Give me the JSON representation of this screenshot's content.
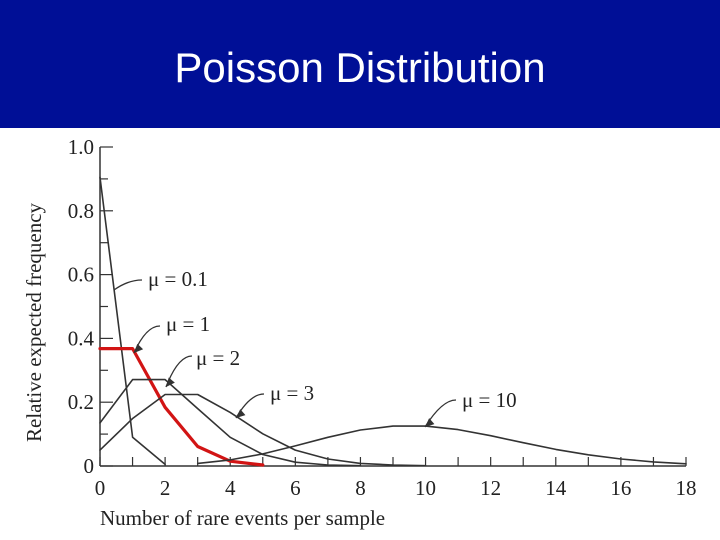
{
  "slide": {
    "title": "Poisson Distribution",
    "title_bar_color": "#000f96",
    "title_text_color": "#ffffff"
  },
  "chart_data": {
    "type": "line",
    "title": "",
    "xlabel": "Number of rare events per sample",
    "ylabel": "Relative expected frequency",
    "xlim": [
      0,
      18
    ],
    "ylim": [
      0,
      1.0
    ],
    "x_ticks": [
      0,
      2,
      4,
      6,
      8,
      10,
      12,
      14,
      16,
      18
    ],
    "y_ticks": [
      0,
      0.2,
      0.4,
      0.6,
      0.8,
      1.0
    ],
    "x_tick_labels": [
      "0",
      "2",
      "4",
      "6",
      "8",
      "10",
      "12",
      "14",
      "16",
      "18"
    ],
    "y_tick_labels": [
      "0",
      "0.2",
      "0.4",
      "0.6",
      "0.8",
      "1.0"
    ],
    "grid": false,
    "series": [
      {
        "name": "μ = 0.1",
        "label_text": "μ = 0.1",
        "color": "#333333",
        "x": [
          0,
          1,
          2
        ],
        "y": [
          0.905,
          0.09,
          0.005
        ]
      },
      {
        "name": "μ = 1",
        "label_text": "μ = 1",
        "color": "#d21414",
        "x": [
          0,
          1,
          2,
          3,
          4,
          5
        ],
        "y": [
          0.368,
          0.368,
          0.184,
          0.061,
          0.015,
          0.003
        ]
      },
      {
        "name": "μ = 2",
        "label_text": "μ = 2",
        "color": "#333333",
        "x": [
          0,
          1,
          2,
          3,
          4,
          5,
          6,
          7,
          8
        ],
        "y": [
          0.135,
          0.271,
          0.271,
          0.18,
          0.09,
          0.036,
          0.012,
          0.003,
          0.001
        ]
      },
      {
        "name": "μ = 3",
        "label_text": "μ = 3",
        "color": "#333333",
        "x": [
          0,
          1,
          2,
          3,
          4,
          5,
          6,
          7,
          8,
          9,
          10
        ],
        "y": [
          0.05,
          0.149,
          0.224,
          0.224,
          0.168,
          0.101,
          0.05,
          0.022,
          0.008,
          0.003,
          0.001
        ]
      },
      {
        "name": "μ = 10",
        "label_text": "μ = 10",
        "color": "#333333",
        "x": [
          3,
          4,
          5,
          6,
          7,
          8,
          9,
          10,
          11,
          12,
          13,
          14,
          15,
          16,
          17,
          18
        ],
        "y": [
          0.008,
          0.019,
          0.038,
          0.063,
          0.09,
          0.113,
          0.125,
          0.125,
          0.114,
          0.095,
          0.073,
          0.052,
          0.035,
          0.022,
          0.013,
          0.007
        ]
      }
    ]
  }
}
